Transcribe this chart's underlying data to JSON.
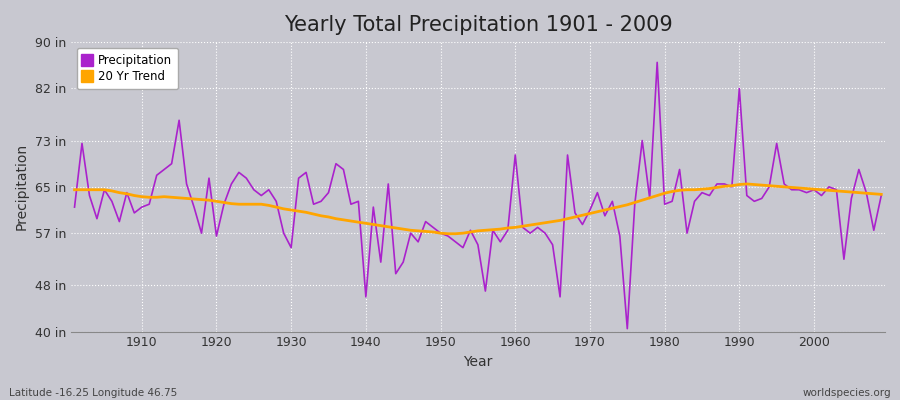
{
  "title": "Yearly Total Precipitation 1901 - 2009",
  "xlabel": "Year",
  "ylabel": "Precipitation",
  "footer_left": "Latitude -16.25 Longitude 46.75",
  "footer_right": "worldspecies.org",
  "years": [
    1901,
    1902,
    1903,
    1904,
    1905,
    1906,
    1907,
    1908,
    1909,
    1910,
    1911,
    1912,
    1913,
    1914,
    1915,
    1916,
    1917,
    1918,
    1919,
    1920,
    1921,
    1922,
    1923,
    1924,
    1925,
    1926,
    1927,
    1928,
    1929,
    1930,
    1931,
    1932,
    1933,
    1934,
    1935,
    1936,
    1937,
    1938,
    1939,
    1940,
    1941,
    1942,
    1943,
    1944,
    1945,
    1946,
    1947,
    1948,
    1949,
    1950,
    1951,
    1952,
    1953,
    1954,
    1955,
    1956,
    1957,
    1958,
    1959,
    1960,
    1961,
    1962,
    1963,
    1964,
    1965,
    1966,
    1967,
    1968,
    1969,
    1970,
    1971,
    1972,
    1973,
    1974,
    1975,
    1976,
    1977,
    1978,
    1979,
    1980,
    1981,
    1982,
    1983,
    1984,
    1985,
    1986,
    1987,
    1988,
    1989,
    1990,
    1991,
    1992,
    1993,
    1994,
    1995,
    1996,
    1997,
    1998,
    1999,
    2000,
    2001,
    2002,
    2003,
    2004,
    2005,
    2006,
    2007,
    2008,
    2009
  ],
  "precip_in": [
    61.5,
    72.5,
    63.5,
    59.5,
    64.5,
    62.5,
    59.0,
    64.0,
    60.5,
    61.5,
    62.0,
    67.0,
    68.0,
    69.0,
    76.5,
    65.5,
    61.5,
    57.0,
    66.5,
    56.5,
    62.0,
    65.5,
    67.5,
    66.5,
    64.5,
    63.5,
    64.5,
    62.5,
    57.0,
    54.5,
    66.5,
    67.5,
    62.0,
    62.5,
    64.0,
    69.0,
    68.0,
    62.0,
    62.5,
    46.0,
    61.5,
    52.0,
    65.5,
    50.0,
    52.0,
    57.0,
    55.5,
    59.0,
    58.0,
    57.0,
    56.5,
    55.5,
    54.5,
    57.5,
    55.0,
    47.0,
    57.5,
    55.5,
    57.5,
    70.5,
    58.0,
    57.0,
    58.0,
    57.0,
    55.0,
    46.0,
    70.5,
    60.5,
    58.5,
    61.0,
    64.0,
    60.0,
    62.5,
    56.5,
    40.5,
    62.0,
    73.0,
    63.0,
    86.5,
    62.0,
    62.5,
    68.0,
    57.0,
    62.5,
    64.0,
    63.5,
    65.5,
    65.5,
    65.0,
    82.0,
    63.5,
    62.5,
    63.0,
    65.0,
    72.5,
    65.5,
    64.5,
    64.5,
    64.0,
    64.5,
    63.5,
    65.0,
    64.5,
    52.5,
    63.0,
    68.0,
    64.0,
    57.5,
    63.5
  ],
  "trend_in": [
    64.5,
    64.5,
    64.5,
    64.5,
    64.5,
    64.3,
    64.0,
    63.8,
    63.5,
    63.3,
    63.2,
    63.2,
    63.3,
    63.2,
    63.1,
    63.0,
    62.9,
    62.8,
    62.7,
    62.5,
    62.3,
    62.1,
    62.0,
    62.0,
    62.0,
    62.0,
    61.8,
    61.5,
    61.2,
    61.0,
    60.8,
    60.6,
    60.3,
    60.0,
    59.8,
    59.5,
    59.3,
    59.1,
    58.9,
    58.7,
    58.5,
    58.3,
    58.1,
    57.9,
    57.7,
    57.5,
    57.4,
    57.3,
    57.2,
    57.0,
    56.9,
    56.9,
    57.0,
    57.2,
    57.4,
    57.5,
    57.6,
    57.7,
    57.9,
    58.0,
    58.2,
    58.4,
    58.6,
    58.8,
    59.0,
    59.2,
    59.5,
    59.8,
    60.1,
    60.4,
    60.7,
    61.0,
    61.3,
    61.6,
    61.9,
    62.3,
    62.7,
    63.1,
    63.5,
    63.9,
    64.2,
    64.4,
    64.5,
    64.5,
    64.6,
    64.7,
    64.9,
    65.1,
    65.2,
    65.4,
    65.5,
    65.4,
    65.3,
    65.2,
    65.1,
    65.0,
    64.9,
    64.8,
    64.7,
    64.6,
    64.5,
    64.4,
    64.3,
    64.2,
    64.1,
    64.0,
    63.9,
    63.8,
    63.7
  ],
  "ylim": [
    40,
    90
  ],
  "yticks": [
    40,
    48,
    57,
    65,
    73,
    82,
    90
  ],
  "ytick_labels": [
    "40 in",
    "48 in",
    "57 in",
    "65 in",
    "73 in",
    "82 in",
    "90 in"
  ],
  "xticks": [
    1910,
    1920,
    1930,
    1940,
    1950,
    1960,
    1970,
    1980,
    1990,
    2000
  ],
  "precip_color": "#AA22CC",
  "trend_color": "#FFA500",
  "bg_color": "#C8C8D0",
  "plot_bg_color": "#C8C8D0",
  "grid_color": "#FFFFFF",
  "title_fontsize": 15,
  "axis_fontsize": 10,
  "tick_fontsize": 9,
  "legend_labels": [
    "Precipitation",
    "20 Yr Trend"
  ]
}
